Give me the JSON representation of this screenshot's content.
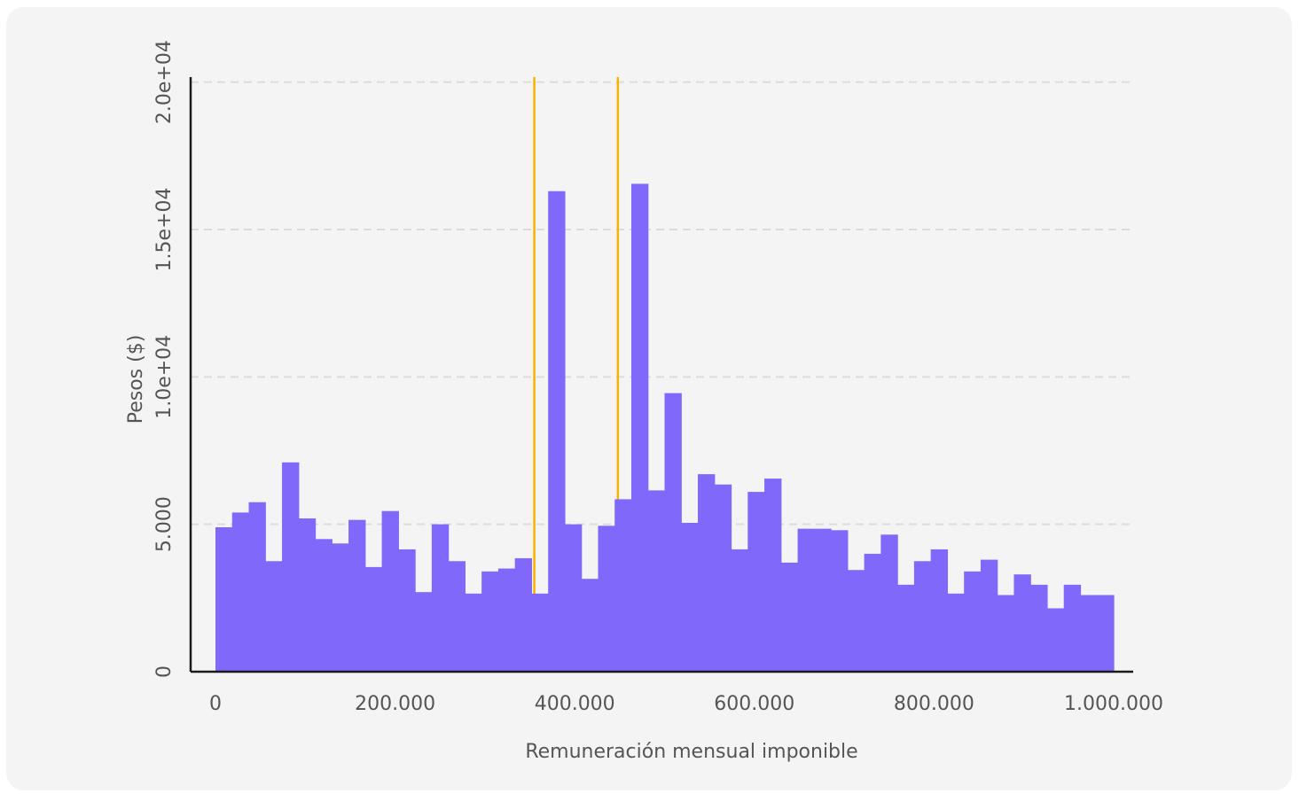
{
  "chart_data": {
    "type": "bar",
    "xlabel": "Remuneración mensual imponible",
    "ylabel": "Pesos ($)",
    "xlim": [
      0,
      1000000
    ],
    "ylim": [
      0,
      20500
    ],
    "x_ticks": [
      {
        "value": 0,
        "label": "0"
      },
      {
        "value": 200000,
        "label": "200.000"
      },
      {
        "value": 400000,
        "label": "400.000"
      },
      {
        "value": 600000,
        "label": "600.000"
      },
      {
        "value": 800000,
        "label": "800.000"
      },
      {
        "value": 1000000,
        "label": "1.000.000"
      }
    ],
    "y_ticks": [
      {
        "value": 0,
        "label": "0"
      },
      {
        "value": 5000,
        "label": "5.000"
      },
      {
        "value": 10000,
        "label": "1.0e+04"
      },
      {
        "value": 15000,
        "label": "1.5e+04"
      },
      {
        "value": 20000,
        "label": "2.0e+04"
      }
    ],
    "grid": {
      "horizontal": true,
      "vertical": false,
      "style": "dashed"
    },
    "bin_width": 18518,
    "bins_start": [
      0,
      18518,
      37037,
      55555,
      74074,
      92592,
      111111,
      129629,
      148148,
      166666,
      185185,
      203703,
      222222,
      240740,
      259259,
      277777,
      296296,
      314814,
      333333,
      351851,
      370370,
      388888,
      407407,
      425925,
      444444,
      462962,
      481481,
      500000,
      518518,
      537037,
      555555,
      574074,
      592592,
      611111,
      629629,
      648148,
      666666,
      685185,
      703703,
      722222,
      740740,
      759259,
      777777,
      796296,
      814814,
      833333,
      851851,
      870370,
      888888,
      907407,
      925925,
      944444,
      962962,
      981481
    ],
    "values": [
      4900,
      5400,
      5750,
      3750,
      7100,
      5200,
      4500,
      4350,
      5150,
      3550,
      5450,
      4150,
      2700,
      5000,
      3750,
      2650,
      3400,
      3500,
      3850,
      2650,
      16300,
      5000,
      3150,
      4950,
      5850,
      16550,
      6150,
      9450,
      5050,
      6700,
      6350,
      4150,
      6100,
      6550,
      3700,
      4850,
      4850,
      4800,
      3450,
      4000,
      4650,
      2950,
      3750,
      4150,
      2650,
      3400,
      3800,
      2600,
      3300,
      2950,
      2150,
      2950,
      2600,
      2600
    ],
    "reference_lines": [
      {
        "x": 355000,
        "color": "#f5b400"
      },
      {
        "x": 448000,
        "color": "#f5b400"
      }
    ],
    "colors": {
      "bar": "#8069fa",
      "reference_line": "#f5b400",
      "axis": "#1a1a1a",
      "grid": "#dcdcdc",
      "background": "#f4f4f4"
    }
  }
}
